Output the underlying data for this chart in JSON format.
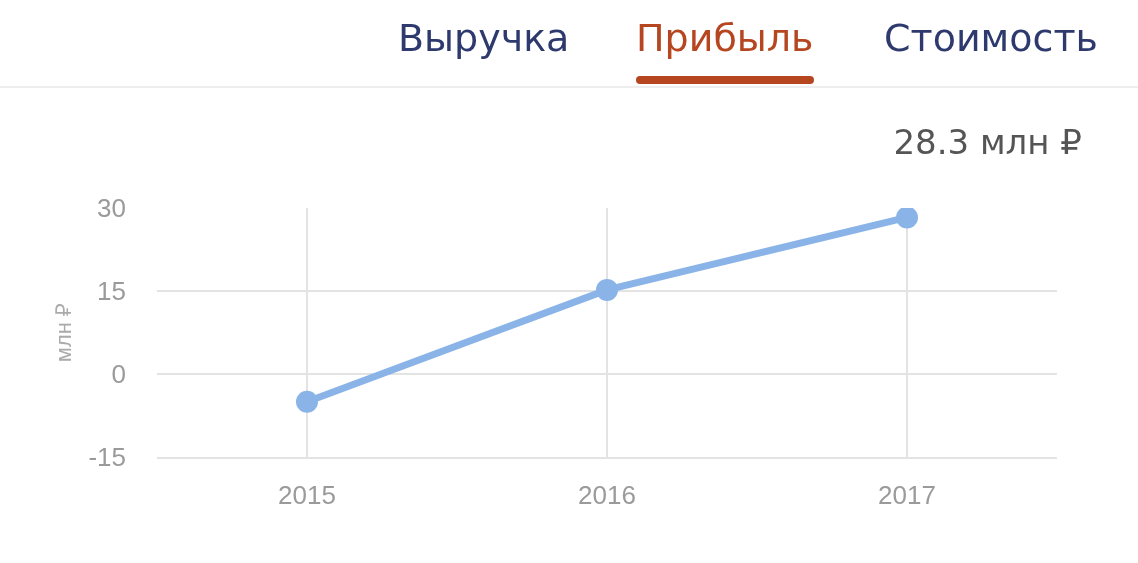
{
  "chart_data": {
    "type": "line",
    "annotations": [
      "Выручка",
      "Прибыль",
      "Стоимость",
      "28.3 млн ₽"
    ],
    "ylabel": "млн ₽",
    "x": [
      2015,
      2016,
      2017
    ],
    "series": [
      {
        "color": "#8ab4e8",
        "values": [
          -5,
          15.2,
          28.3
        ]
      }
    ],
    "xlim": [
      2014.5,
      2017.5
    ],
    "xticks": [
      2015,
      2016,
      2017
    ],
    "ylim": [
      -15,
      30
    ],
    "yticks": [
      -15,
      0,
      15,
      30
    ],
    "grid": true,
    "marker": "circle",
    "line_style": "solid"
  }
}
